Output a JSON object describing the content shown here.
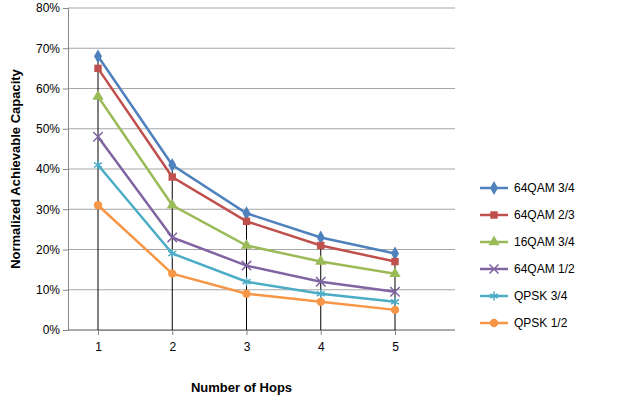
{
  "chart_data": {
    "type": "line",
    "x_label": "Number of Hops",
    "y_label": "Normalized Achievable Capacity",
    "categories": [
      "1",
      "2",
      "3",
      "4",
      "5"
    ],
    "series": [
      {
        "name": "64QAM 3/4",
        "color": "#4f81bd",
        "marker": "diamond",
        "values": [
          68,
          41,
          29,
          23,
          19
        ]
      },
      {
        "name": "64QAM 2/3",
        "color": "#c0504d",
        "marker": "square",
        "values": [
          65,
          38,
          27,
          21,
          17
        ]
      },
      {
        "name": "16QAM 3/4",
        "color": "#9bbb59",
        "marker": "triangle",
        "values": [
          58,
          31,
          21,
          17,
          14
        ]
      },
      {
        "name": "64QAM 1/2",
        "color": "#8064a2",
        "marker": "x",
        "values": [
          48,
          23,
          16,
          12,
          9.5
        ]
      },
      {
        "name": "QPSK 3/4",
        "color": "#4bacc6",
        "marker": "asterisk",
        "values": [
          41,
          19,
          12,
          9,
          7
        ]
      },
      {
        "name": "QPSK 1/2",
        "color": "#f79646",
        "marker": "circle",
        "values": [
          31,
          14,
          9,
          7,
          5
        ]
      }
    ],
    "ylim": [
      0,
      80
    ],
    "yticks": [
      {
        "value": 0,
        "label": "0%"
      },
      {
        "value": 10,
        "label": "10%"
      },
      {
        "value": 20,
        "label": "20%"
      },
      {
        "value": 30,
        "label": "30%"
      },
      {
        "value": 40,
        "label": "40%"
      },
      {
        "value": 50,
        "label": "50%"
      },
      {
        "value": 60,
        "label": "60%"
      },
      {
        "value": 70,
        "label": "70%"
      },
      {
        "value": 80,
        "label": "80%"
      }
    ],
    "grid": true,
    "legend": "right"
  }
}
